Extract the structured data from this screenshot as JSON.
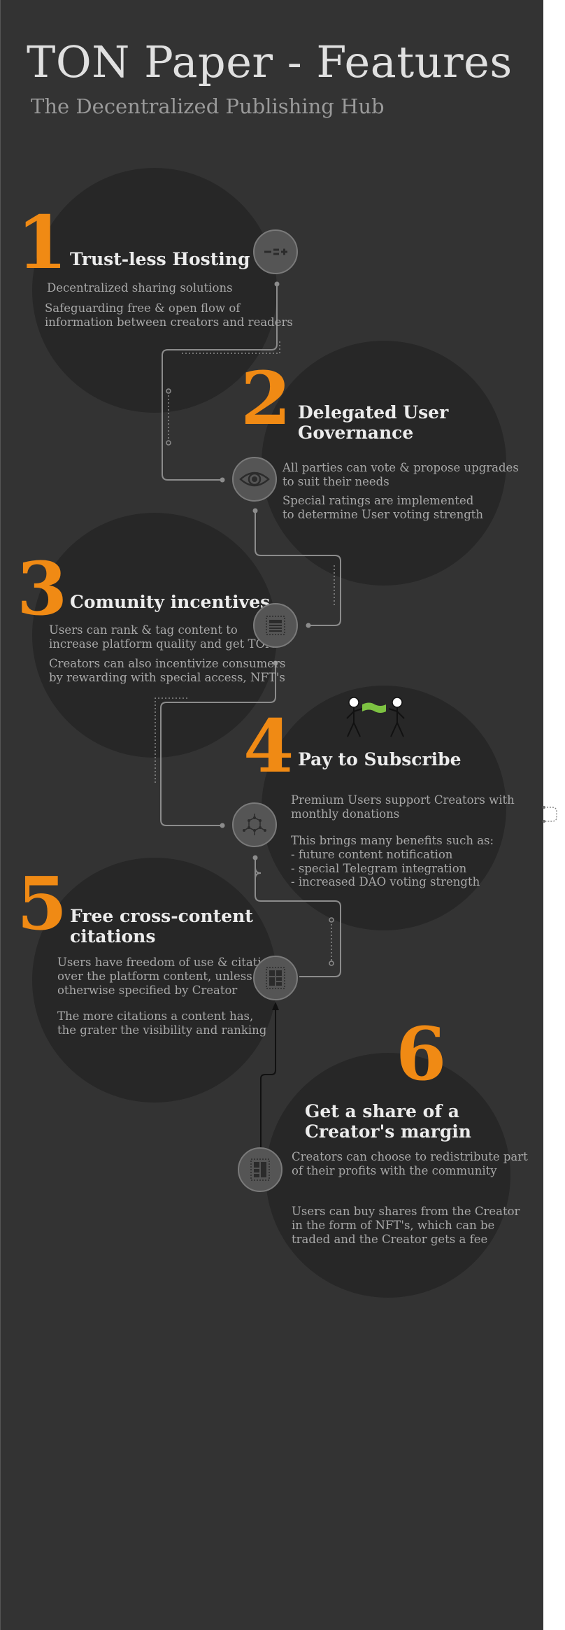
{
  "header": {
    "title": "TON Paper - Features",
    "subtitle": "The Decentralized Publishing Hub"
  },
  "features": [
    {
      "number": "1",
      "title": "Trust-less Hosting",
      "icon": "balance-icon",
      "lines": [
        "Decentralized sharing solutions",
        "Safeguarding free & open flow of\ninformation between creators and readers"
      ]
    },
    {
      "number": "2",
      "title": "Delegated User\nGovernance",
      "icon": "eye-icon",
      "lines": [
        "All parties can vote & propose upgrades\nto suit their needs",
        "Special ratings are implemented\nto determine User voting strength"
      ]
    },
    {
      "number": "3",
      "title": "Comunity incentives",
      "icon": "document-icon",
      "lines": [
        "Users can rank & tag content to\nincrease platform quality and get TON",
        "Creators can also incentivize consumers\nby rewarding with special access, NFT's"
      ]
    },
    {
      "number": "4",
      "title": "Pay to Subscribe",
      "icon": "network-icon",
      "lines": [
        "Premium Users support Creators with\nmonthly donations",
        "This brings many benefits such as:\n- future content notification\n- special Telegram integration\n- increased DAO voting strength"
      ]
    },
    {
      "number": "5",
      "title": "Free cross-content\ncitations",
      "icon": "layout-icon",
      "lines": [
        "Users have freedom of use & citation\nover the platform content, unless\notherwise specified by Creator",
        "The more citations a content has,\nthe grater the visibility and ranking"
      ]
    },
    {
      "number": "6",
      "title": "Get a share of a\nCreator's margin",
      "icon": "grid-icon",
      "lines": [
        "Creators can choose to redistribute part\nof their profits with the community",
        "Users can buy shares from the Creator\nin the form of NFT's, which can be\ntraded and the Creator gets a fee"
      ]
    }
  ],
  "colors": {
    "panel": "#333333",
    "circle": "#272727",
    "accent": "#f08a14",
    "heading": "#ececec",
    "text": "#a8a8a8",
    "connector": "#8c8c8c",
    "flag": "#7dc242"
  }
}
